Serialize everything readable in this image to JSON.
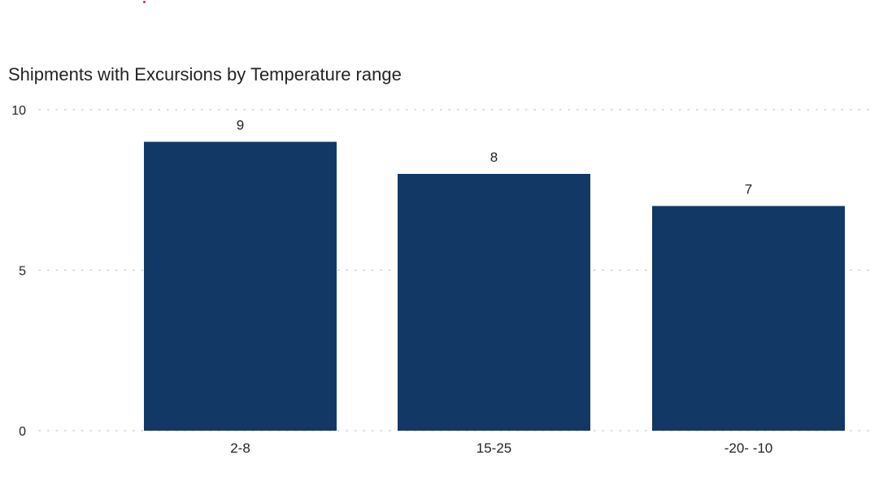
{
  "chart_data": {
    "type": "bar",
    "title": "Shipments with Excursions by Temperature range",
    "categories": [
      "2-8",
      "15-25",
      "-20- -10"
    ],
    "values": [
      9,
      8,
      7
    ],
    "xlabel": "",
    "ylabel": "",
    "ylim": [
      0,
      10
    ],
    "yticks": [
      "0",
      "5",
      "10"
    ],
    "grid": true,
    "legend": "none",
    "bar_color": "#123866",
    "gridline_color": "#c8c6c4"
  }
}
